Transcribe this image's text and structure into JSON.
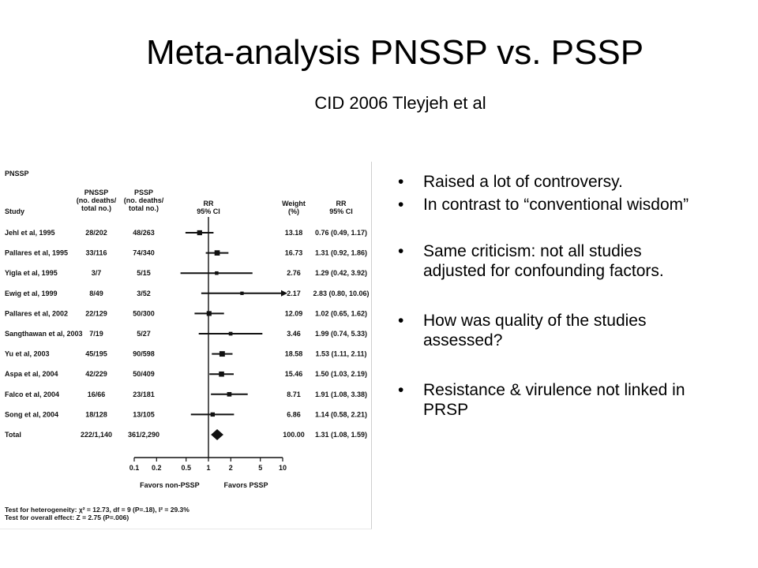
{
  "slide": {
    "title": "Meta-analysis PNSSP vs. PSSP",
    "subtitle": "CID 2006 Tleyjeh et al",
    "bullets": [
      "Raised a lot of controversy.",
      "In contrast to “conventional wisdom”",
      "Same criticism: not all studies adjusted for confounding factors.",
      "How was quality of the studies assessed?",
      "Resistance & virulence not linked in PRSP"
    ]
  },
  "chart_data": {
    "type": "forest",
    "section_label": "PNSSP",
    "headers": {
      "study": "Study",
      "pnssp": [
        "PNSSP",
        "(no. deaths/",
        "total no.)"
      ],
      "pssp": [
        "PSSP",
        "(no. deaths/",
        "total no.)"
      ],
      "rr": [
        "RR",
        "95% CI"
      ],
      "weight": [
        "Weight",
        "(%)"
      ],
      "rr_ci": [
        "RR",
        "95% CI"
      ]
    },
    "studies": [
      {
        "study": "Jehl et al, 1995",
        "pnssp": "28/202",
        "pssp": "48/263",
        "weight": "13.18",
        "rr_text": "0.76 (0.49, 1.17)",
        "rr": 0.76,
        "lo": 0.49,
        "hi": 1.17
      },
      {
        "study": "Pallares et al, 1995",
        "pnssp": "33/116",
        "pssp": "74/340",
        "weight": "16.73",
        "rr_text": "1.31 (0.92, 1.86)",
        "rr": 1.31,
        "lo": 0.92,
        "hi": 1.86
      },
      {
        "study": "Yigla et al, 1995",
        "pnssp": "3/7",
        "pssp": "5/15",
        "weight": "2.76",
        "rr_text": "1.29 (0.42, 3.92)",
        "rr": 1.29,
        "lo": 0.42,
        "hi": 3.92
      },
      {
        "study": "Ewig et al, 1999",
        "pnssp": "8/49",
        "pssp": "3/52",
        "weight": "2.17",
        "rr_text": "2.83 (0.80, 10.06)",
        "rr": 2.83,
        "lo": 0.8,
        "hi": 10.06
      },
      {
        "study": "Pallares et al, 2002",
        "pnssp": "22/129",
        "pssp": "50/300",
        "weight": "12.09",
        "rr_text": "1.02 (0.65, 1.62)",
        "rr": 1.02,
        "lo": 0.65,
        "hi": 1.62
      },
      {
        "study": "Sangthawan et al, 2003",
        "pnssp": "7/19",
        "pssp": "5/27",
        "weight": "3.46",
        "rr_text": "1.99 (0.74, 5.33)",
        "rr": 1.99,
        "lo": 0.74,
        "hi": 5.33
      },
      {
        "study": "Yu et al, 2003",
        "pnssp": "45/195",
        "pssp": "90/598",
        "weight": "18.58",
        "rr_text": "1.53 (1.11, 2.11)",
        "rr": 1.53,
        "lo": 1.11,
        "hi": 2.11
      },
      {
        "study": "Aspa et al, 2004",
        "pnssp": "42/229",
        "pssp": "50/409",
        "weight": "15.46",
        "rr_text": "1.50 (1.03, 2.19)",
        "rr": 1.5,
        "lo": 1.03,
        "hi": 2.19
      },
      {
        "study": "Falco et al, 2004",
        "pnssp": "16/66",
        "pssp": "23/181",
        "weight": "8.71",
        "rr_text": "1.91 (1.08, 3.38)",
        "rr": 1.91,
        "lo": 1.08,
        "hi": 3.38
      },
      {
        "study": "Song et al, 2004",
        "pnssp": "18/128",
        "pssp": "13/105",
        "weight": "6.86",
        "rr_text": "1.14 (0.58, 2.21)",
        "rr": 1.14,
        "lo": 0.58,
        "hi": 2.21
      }
    ],
    "total": {
      "study": "Total",
      "pnssp": "222/1,140",
      "pssp": "361/2,290",
      "weight": "100.00",
      "rr_text": "1.31 (1.08, 1.59)",
      "rr": 1.31,
      "lo": 1.08,
      "hi": 1.59
    },
    "x_scale": "log",
    "xlim": [
      0.1,
      10
    ],
    "x_ticks": [
      "0.1",
      "0.2",
      "0.5",
      "1",
      "2",
      "5",
      "10"
    ],
    "favors_left": "Favors non-PSSP",
    "favors_right": "Favors PSSP",
    "footnotes": [
      "Test for heterogeneity: χ² = 12.73, df = 9 (P=.18), I² = 29.3%",
      "Test for overall effect:  Z = 2.75 (P=.006)"
    ]
  }
}
